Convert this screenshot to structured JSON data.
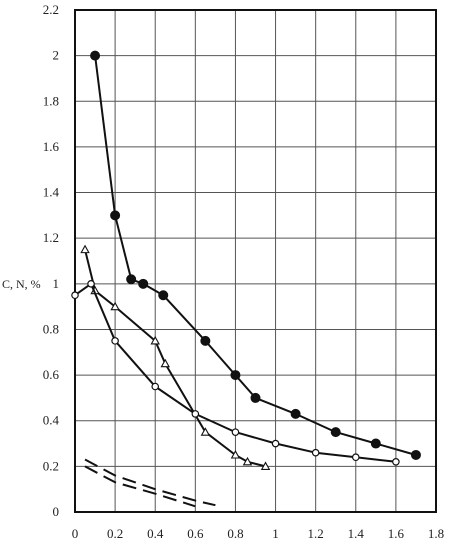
{
  "chart_data": {
    "type": "line",
    "ylabel": "C, N, %",
    "xlim": [
      0,
      1.8
    ],
    "ylim": [
      0,
      2.2
    ],
    "x_ticks": [
      0,
      0.2,
      0.4,
      0.6,
      0.8,
      1,
      1.2,
      1.4,
      1.6,
      1.8
    ],
    "x_tick_labels": [
      "0",
      "0.2",
      "0.4",
      "0.6",
      "0.8",
      "1",
      "1.2",
      "1.4",
      "1.6",
      "1.8"
    ],
    "y_ticks": [
      0,
      0.2,
      0.4,
      0.6,
      0.8,
      1,
      1.2,
      1.4,
      1.6,
      1.8,
      2,
      2.2
    ],
    "y_tick_labels": [
      "0",
      "0.2",
      "0.4",
      "0.6",
      "0.8",
      "1",
      "1.2",
      "1.4",
      "1.6",
      "1.8",
      "2",
      "2.2"
    ],
    "grid": true,
    "series": [
      {
        "marker": "filled-circle",
        "line": "solid",
        "points": [
          [
            0.1,
            2.0
          ],
          [
            0.2,
            1.3
          ],
          [
            0.28,
            1.02
          ],
          [
            0.34,
            1.0
          ],
          [
            0.44,
            0.95
          ],
          [
            0.65,
            0.75
          ],
          [
            0.8,
            0.6
          ],
          [
            0.9,
            0.5
          ],
          [
            1.1,
            0.43
          ],
          [
            1.3,
            0.35
          ],
          [
            1.5,
            0.3
          ],
          [
            1.7,
            0.25
          ]
        ]
      },
      {
        "marker": "open-triangle",
        "line": "solid",
        "points": [
          [
            0.05,
            1.15
          ],
          [
            0.1,
            0.97
          ],
          [
            0.2,
            0.9
          ],
          [
            0.4,
            0.75
          ],
          [
            0.45,
            0.65
          ],
          [
            0.65,
            0.35
          ],
          [
            0.8,
            0.25
          ],
          [
            0.86,
            0.22
          ],
          [
            0.95,
            0.2
          ]
        ]
      },
      {
        "marker": "open-circle",
        "line": "solid",
        "points": [
          [
            0.0,
            0.95
          ],
          [
            0.08,
            1.0
          ],
          [
            0.2,
            0.75
          ],
          [
            0.4,
            0.55
          ],
          [
            0.6,
            0.43
          ],
          [
            0.8,
            0.35
          ],
          [
            1.0,
            0.3
          ],
          [
            1.2,
            0.26
          ],
          [
            1.4,
            0.24
          ],
          [
            1.6,
            0.22
          ]
        ]
      },
      {
        "marker": "none",
        "line": "dashed",
        "points": [
          [
            0.05,
            0.23
          ],
          [
            0.2,
            0.16
          ],
          [
            0.4,
            0.1
          ],
          [
            0.6,
            0.05
          ],
          [
            0.7,
            0.03
          ]
        ]
      },
      {
        "marker": "none",
        "line": "dashed",
        "points": [
          [
            0.05,
            0.2
          ],
          [
            0.2,
            0.13
          ],
          [
            0.4,
            0.08
          ],
          [
            0.6,
            0.025
          ]
        ]
      }
    ],
    "colors": {
      "line": "#111111",
      "grid": "#555555",
      "frame": "#111111",
      "background": "#ffffff"
    }
  }
}
